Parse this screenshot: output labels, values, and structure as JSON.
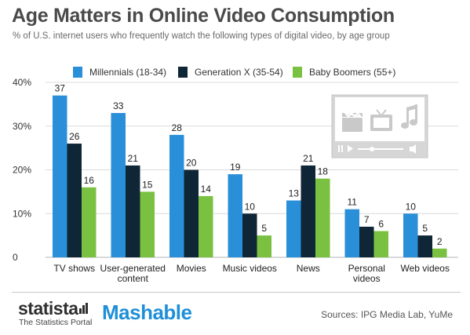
{
  "chart_data": {
    "type": "bar",
    "title": "Age Matters in Online Video Consumption",
    "subtitle": "% of U.S. internet users who frequently watch the following types of digital video, by age group",
    "categories": [
      [
        "TV shows"
      ],
      [
        "User-generated",
        "content"
      ],
      [
        "Movies"
      ],
      [
        "Music videos"
      ],
      [
        "News"
      ],
      [
        "Personal",
        "videos"
      ],
      [
        "Web videos"
      ]
    ],
    "series": [
      {
        "name": "Millennials (18-34)",
        "color": "#2a8fd9",
        "values": [
          37,
          33,
          28,
          19,
          13,
          11,
          10
        ]
      },
      {
        "name": "Generation X (35-54)",
        "color": "#0f2636",
        "values": [
          26,
          21,
          20,
          10,
          21,
          7,
          5
        ]
      },
      {
        "name": "Baby Boomers (55+)",
        "color": "#7ac142",
        "values": [
          16,
          15,
          14,
          5,
          18,
          6,
          2
        ]
      }
    ],
    "ylim": [
      0,
      40
    ],
    "yticks": [
      "0",
      "10%",
      "20%",
      "30%",
      "40%"
    ],
    "ytick_values": [
      0,
      10,
      20,
      30,
      40
    ],
    "grid": true,
    "legend_position": "top"
  },
  "footer": {
    "statista_logo": "statista",
    "statista_tagline": "The Statistics Portal",
    "partner_logo": "Mashable",
    "sources": "Sources: IPG Media Lab, YuMe"
  },
  "illustration": {
    "icons": [
      "film-clapper-icon",
      "tv-icon",
      "music-note-icon",
      "play-icon",
      "volume-icon"
    ]
  }
}
